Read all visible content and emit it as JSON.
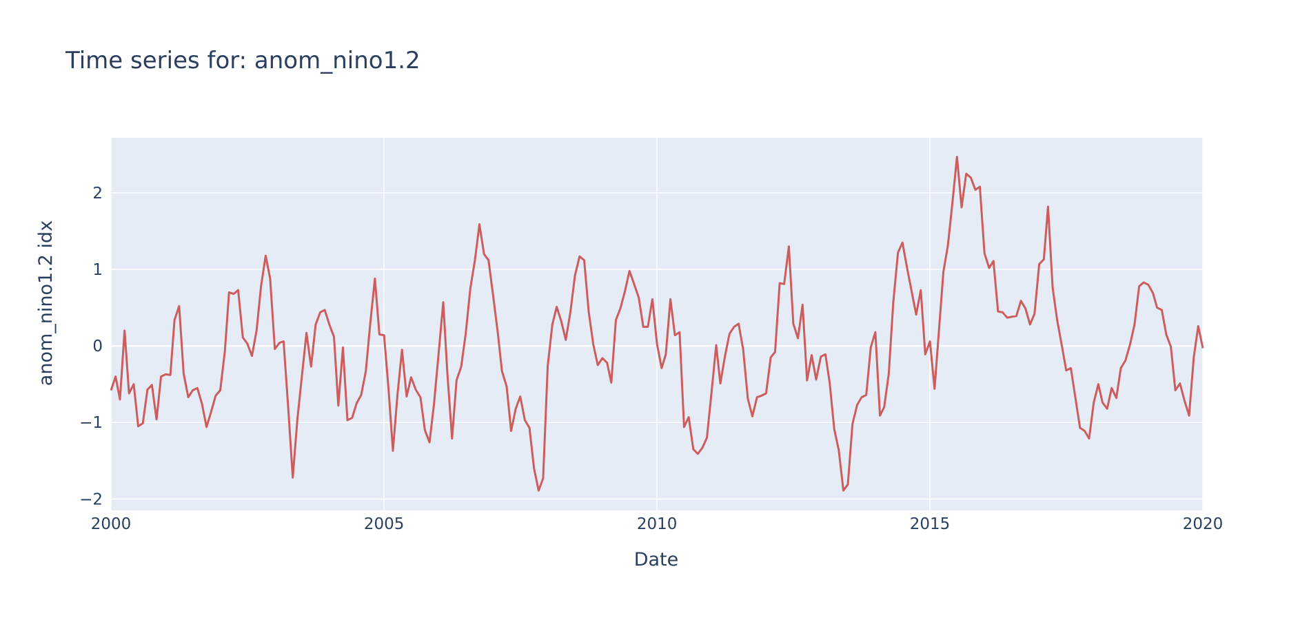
{
  "chart_data": {
    "type": "line",
    "title": "Time series for: anom_nino1.2",
    "xlabel": "Date",
    "ylabel": "anom_nino1.2 idx",
    "xlim": [
      "2000-01-01",
      "2020-01-01"
    ],
    "ylim": [
      -2.15,
      2.72
    ],
    "x_ticks": [
      "2000",
      "2005",
      "2010",
      "2015",
      "2020"
    ],
    "y_ticks": [
      -2,
      -1,
      0,
      1,
      2
    ],
    "y_tick_labels": [
      "−2",
      "−1",
      "0",
      "1",
      "2"
    ],
    "grid": true,
    "legend": "none",
    "colors": {
      "line": "#cd5c5c",
      "plot_bg": "#e5ecf6",
      "grid": "#ffffff",
      "text": "#2a3f5f"
    },
    "series": [
      {
        "x": [
          "2000-01",
          "2000-02",
          "2000-03",
          "2000-04",
          "2000-05",
          "2000-06",
          "2000-07",
          "2000-08",
          "2000-09",
          "2000-10",
          "2000-11",
          "2000-12",
          "2001-01",
          "2001-02",
          "2001-03",
          "2001-04",
          "2001-05",
          "2001-06",
          "2001-07",
          "2001-08",
          "2001-09",
          "2001-10",
          "2001-11",
          "2001-12",
          "2002-01",
          "2002-02",
          "2002-03",
          "2002-04",
          "2002-05",
          "2002-06",
          "2002-07",
          "2002-08",
          "2002-09",
          "2002-10",
          "2002-11",
          "2002-12",
          "2003-01",
          "2003-02",
          "2003-03",
          "2003-04",
          "2003-05",
          "2003-06",
          "2003-07",
          "2003-08",
          "2003-09",
          "2003-10",
          "2003-11",
          "2003-12",
          "2004-01",
          "2004-02",
          "2004-03",
          "2004-04",
          "2004-05",
          "2004-06",
          "2004-07",
          "2004-08",
          "2004-09",
          "2004-10",
          "2004-11",
          "2004-12",
          "2005-01",
          "2005-02",
          "2005-03",
          "2005-04",
          "2005-05",
          "2005-06",
          "2005-07",
          "2005-08",
          "2005-09",
          "2005-10",
          "2005-11",
          "2005-12",
          "2006-01",
          "2006-02",
          "2006-03",
          "2006-04",
          "2006-05",
          "2006-06",
          "2006-07",
          "2006-08",
          "2006-09",
          "2006-10",
          "2006-11",
          "2006-12",
          "2007-01",
          "2007-02",
          "2007-03",
          "2007-04",
          "2007-05",
          "2007-06",
          "2007-07",
          "2007-08",
          "2007-09",
          "2007-10",
          "2007-11",
          "2007-12",
          "2008-01",
          "2008-02",
          "2008-03",
          "2008-04",
          "2008-05",
          "2008-06",
          "2008-07",
          "2008-08",
          "2008-09",
          "2008-10",
          "2008-11",
          "2008-12",
          "2009-01",
          "2009-02",
          "2009-03",
          "2009-04",
          "2009-05",
          "2009-06",
          "2009-07",
          "2009-08",
          "2009-09",
          "2009-10",
          "2009-11",
          "2009-12",
          "2010-01",
          "2010-02",
          "2010-03",
          "2010-04",
          "2010-05",
          "2010-06",
          "2010-07",
          "2010-08",
          "2010-09",
          "2010-10",
          "2010-11",
          "2010-12",
          "2011-01",
          "2011-02",
          "2011-03",
          "2011-04",
          "2011-05",
          "2011-06",
          "2011-07",
          "2011-08",
          "2011-09",
          "2011-10",
          "2011-11",
          "2011-12",
          "2012-01",
          "2012-02",
          "2012-03",
          "2012-04",
          "2012-05",
          "2012-06",
          "2012-07",
          "2012-08",
          "2012-09",
          "2012-10",
          "2012-11",
          "2012-12",
          "2013-01",
          "2013-02",
          "2013-03",
          "2013-04",
          "2013-05",
          "2013-06",
          "2013-07",
          "2013-08",
          "2013-09",
          "2013-10",
          "2013-11",
          "2013-12",
          "2014-01",
          "2014-02",
          "2014-03",
          "2014-04",
          "2014-05",
          "2014-06",
          "2014-07",
          "2014-08",
          "2014-09",
          "2014-10",
          "2014-11",
          "2014-12",
          "2015-01",
          "2015-02",
          "2015-03",
          "2015-04",
          "2015-05",
          "2015-06",
          "2015-07",
          "2015-08",
          "2015-09",
          "2015-10",
          "2015-11",
          "2015-12",
          "2016-01",
          "2016-02",
          "2016-03",
          "2016-04",
          "2016-05",
          "2016-06",
          "2016-07",
          "2016-08",
          "2016-09",
          "2016-10",
          "2016-11",
          "2016-12",
          "2017-01",
          "2017-02",
          "2017-03",
          "2017-04",
          "2017-05",
          "2017-06",
          "2017-07",
          "2017-08",
          "2017-09",
          "2017-10",
          "2017-11",
          "2017-12",
          "2018-01",
          "2018-02",
          "2018-03",
          "2018-04",
          "2018-05",
          "2018-06",
          "2018-07",
          "2018-08",
          "2018-09",
          "2018-10",
          "2018-11",
          "2018-12",
          "2019-01",
          "2019-02",
          "2019-03",
          "2019-04",
          "2019-05",
          "2019-06",
          "2019-07",
          "2019-08",
          "2019-09",
          "2019-10",
          "2019-11",
          "2019-12",
          "2020-01"
        ],
        "y": [
          -0.58,
          -0.4,
          -0.7,
          0.2,
          -0.62,
          -0.5,
          -1.05,
          -1.01,
          -0.57,
          -0.51,
          -0.96,
          -0.4,
          -0.37,
          -0.38,
          0.34,
          0.52,
          -0.36,
          -0.67,
          -0.58,
          -0.55,
          -0.76,
          -1.06,
          -0.86,
          -0.65,
          -0.58,
          -0.07,
          0.7,
          0.68,
          0.73,
          0.11,
          0.03,
          -0.13,
          0.2,
          0.78,
          1.18,
          0.88,
          -0.04,
          0.04,
          0.06,
          -0.82,
          -1.72,
          -0.96,
          -0.4,
          0.17,
          -0.27,
          0.28,
          0.44,
          0.47,
          0.28,
          0.12,
          -0.78,
          -0.02,
          -0.97,
          -0.94,
          -0.75,
          -0.64,
          -0.33,
          0.3,
          0.88,
          0.15,
          0.14,
          -0.59,
          -1.37,
          -0.63,
          -0.05,
          -0.66,
          -0.41,
          -0.57,
          -0.67,
          -1.1,
          -1.26,
          -0.76,
          -0.1,
          0.57,
          -0.37,
          -1.21,
          -0.45,
          -0.27,
          0.16,
          0.75,
          1.12,
          1.59,
          1.2,
          1.12,
          0.65,
          0.17,
          -0.33,
          -0.53,
          -1.11,
          -0.82,
          -0.66,
          -0.97,
          -1.07,
          -1.6,
          -1.89,
          -1.73,
          -0.26,
          0.28,
          0.51,
          0.32,
          0.08,
          0.45,
          0.92,
          1.17,
          1.12,
          0.45,
          0.02,
          -0.25,
          -0.16,
          -0.22,
          -0.48,
          0.34,
          0.49,
          0.72,
          0.98,
          0.81,
          0.63,
          0.25,
          0.25,
          0.61,
          0.03,
          -0.29,
          -0.11,
          0.61,
          0.14,
          0.18,
          -1.06,
          -0.93,
          -1.35,
          -1.41,
          -1.33,
          -1.2,
          -0.6,
          0.01,
          -0.49,
          -0.13,
          0.16,
          0.25,
          0.29,
          -0.05,
          -0.69,
          -0.92,
          -0.67,
          -0.65,
          -0.62,
          -0.15,
          -0.08,
          0.82,
          0.81,
          1.3,
          0.29,
          0.1,
          0.54,
          -0.45,
          -0.12,
          -0.44,
          -0.14,
          -0.11,
          -0.48,
          -1.09,
          -1.36,
          -1.89,
          -1.81,
          -1.02,
          -0.77,
          -0.67,
          -0.64,
          -0.02,
          0.18,
          -0.91,
          -0.8,
          -0.36,
          0.57,
          1.22,
          1.35,
          1.02,
          0.71,
          0.41,
          0.73,
          -0.11,
          0.06,
          -0.56,
          0.16,
          0.97,
          1.31,
          1.88,
          2.47,
          1.81,
          2.25,
          2.2,
          2.04,
          2.08,
          1.21,
          1.02,
          1.11,
          0.45,
          0.44,
          0.37,
          0.38,
          0.39,
          0.59,
          0.49,
          0.28,
          0.42,
          1.07,
          1.13,
          1.82,
          0.76,
          0.34,
          0.01,
          -0.32,
          -0.29,
          -0.69,
          -1.07,
          -1.11,
          -1.21,
          -0.74,
          -0.5,
          -0.74,
          -0.82,
          -0.55,
          -0.68,
          -0.29,
          -0.19,
          0.02,
          0.28,
          0.78,
          0.83,
          0.8,
          0.69,
          0.5,
          0.47,
          0.15,
          -0.01,
          -0.58,
          -0.49,
          -0.72,
          -0.91,
          -0.15,
          0.26,
          -0.03
        ]
      }
    ]
  }
}
